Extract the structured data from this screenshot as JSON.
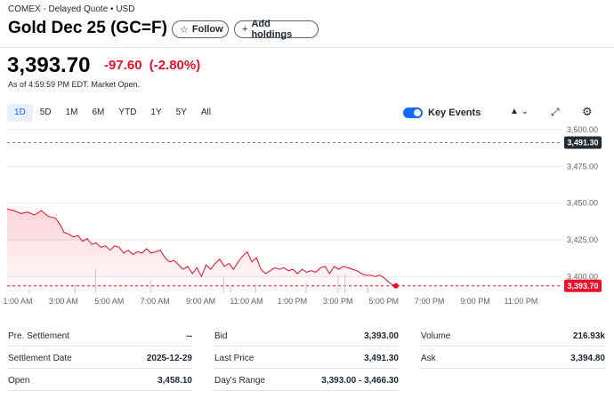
{
  "header": {
    "subtitle": "COMEX - Delayed Quote • USD",
    "title": "Gold Dec 25 (GC=F)",
    "follow_label": "Follow",
    "add_holdings_label": "Add holdings"
  },
  "quote": {
    "price": "3,393.70",
    "change": "-97.60",
    "change_pct": "(-2.80%)",
    "as_of": "As of 4:59:59 PM EDT. Market Open.",
    "negative_color": "#eb0f29"
  },
  "range_tabs": [
    "1D",
    "5D",
    "1M",
    "6M",
    "YTD",
    "1Y",
    "5Y",
    "All"
  ],
  "active_range": "1D",
  "toolbar": {
    "key_events_label": "Key Events",
    "key_events_on": true,
    "accent_color": "#0f69ff"
  },
  "chart_data": {
    "type": "line",
    "y_ticks": [
      "3,500.00",
      "3,475.00",
      "3,450.00",
      "3,425.00",
      "3,400.00"
    ],
    "y_tick_values": [
      3500,
      3475,
      3450,
      3425,
      3400
    ],
    "x_ticks": [
      "1:00 AM",
      "3:00 AM",
      "5:00 AM",
      "7:00 AM",
      "9:00 AM",
      "11:00 AM",
      "1:00 PM",
      "3:00 PM",
      "5:00 PM",
      "7:00 PM",
      "9:00 PM",
      "11:00 PM"
    ],
    "x_tick_hours": [
      1,
      3,
      5,
      7,
      9,
      11,
      13,
      15,
      17,
      19,
      21,
      23
    ],
    "prev_close": 3491.3,
    "prev_close_label": "3,491.30",
    "last_price": 3393.7,
    "last_price_label": "3,393.70",
    "line_color": "#eb0f29",
    "series": [
      {
        "hours": [
          0.0,
          0.3,
          0.6,
          0.9,
          1.2,
          1.5,
          1.8,
          2.1,
          2.3,
          2.5,
          2.7,
          2.9,
          3.1,
          3.3,
          3.5,
          3.7,
          3.9,
          4.1,
          4.3,
          4.5,
          4.7,
          4.9,
          5.1,
          5.3,
          5.5,
          5.7,
          5.9,
          6.1,
          6.3,
          6.5,
          6.7,
          6.9,
          7.1,
          7.3,
          7.5,
          7.7,
          7.9,
          8.1,
          8.3,
          8.5,
          8.7,
          8.9,
          9.1,
          9.3,
          9.5,
          9.7,
          9.9,
          10.1,
          10.3,
          10.5,
          10.7,
          10.9,
          11.1,
          11.3,
          11.5,
          11.7,
          11.9,
          12.1,
          12.3,
          12.5,
          12.7,
          12.9,
          13.1,
          13.3,
          13.5,
          13.7,
          13.9,
          14.1,
          14.3,
          14.5,
          14.7,
          14.9,
          15.1,
          15.3,
          15.5,
          15.7,
          15.9,
          16.1,
          16.3,
          16.5,
          16.7,
          16.9,
          17.0
        ],
        "values": [
          3446,
          3445,
          3443,
          3444,
          3442,
          3445,
          3441,
          3440,
          3436,
          3430,
          3429,
          3427,
          3428,
          3424,
          3426,
          3422,
          3423,
          3420,
          3421,
          3418,
          3421,
          3420,
          3416,
          3418,
          3415,
          3417,
          3416,
          3419,
          3416,
          3417,
          3418,
          3413,
          3410,
          3411,
          3408,
          3405,
          3407,
          3402,
          3406,
          3400,
          3408,
          3405,
          3409,
          3412,
          3407,
          3409,
          3405,
          3410,
          3414,
          3417,
          3410,
          3413,
          3405,
          3402,
          3404,
          3406,
          3405,
          3406,
          3404,
          3405,
          3402,
          3405,
          3403,
          3404,
          3403,
          3406,
          3407,
          3402,
          3407,
          3405,
          3407,
          3406,
          3405,
          3404,
          3402,
          3401,
          3401,
          3400,
          3401,
          3399,
          3396,
          3394,
          3393.7
        ]
      }
    ],
    "volume": {
      "hours": [
        0.5,
        2.5,
        3.4,
        5.8,
        9.0,
        9.3,
        10.4,
        12.6,
        14.0,
        14.3,
        15.3
      ],
      "values": [
        0.15,
        0.35,
        0.9,
        0.5,
        0.6,
        0.3,
        0.35,
        0.4,
        0.65,
        0.7,
        0.3
      ]
    }
  },
  "stats": [
    {
      "label": "Pre. Settlement",
      "value": "--"
    },
    {
      "label": "Settlement Date",
      "value": "2025-12-29"
    },
    {
      "label": "Open",
      "value": "3,458.10"
    },
    {
      "label": "Bid",
      "value": "3,393.00"
    },
    {
      "label": "Last Price",
      "value": "3,491.30"
    },
    {
      "label": "Day's Range",
      "value": "3,393.00 - 3,466.30"
    },
    {
      "label": "Volume",
      "value": "216.93k"
    },
    {
      "label": "Ask",
      "value": "3,394.80"
    }
  ]
}
